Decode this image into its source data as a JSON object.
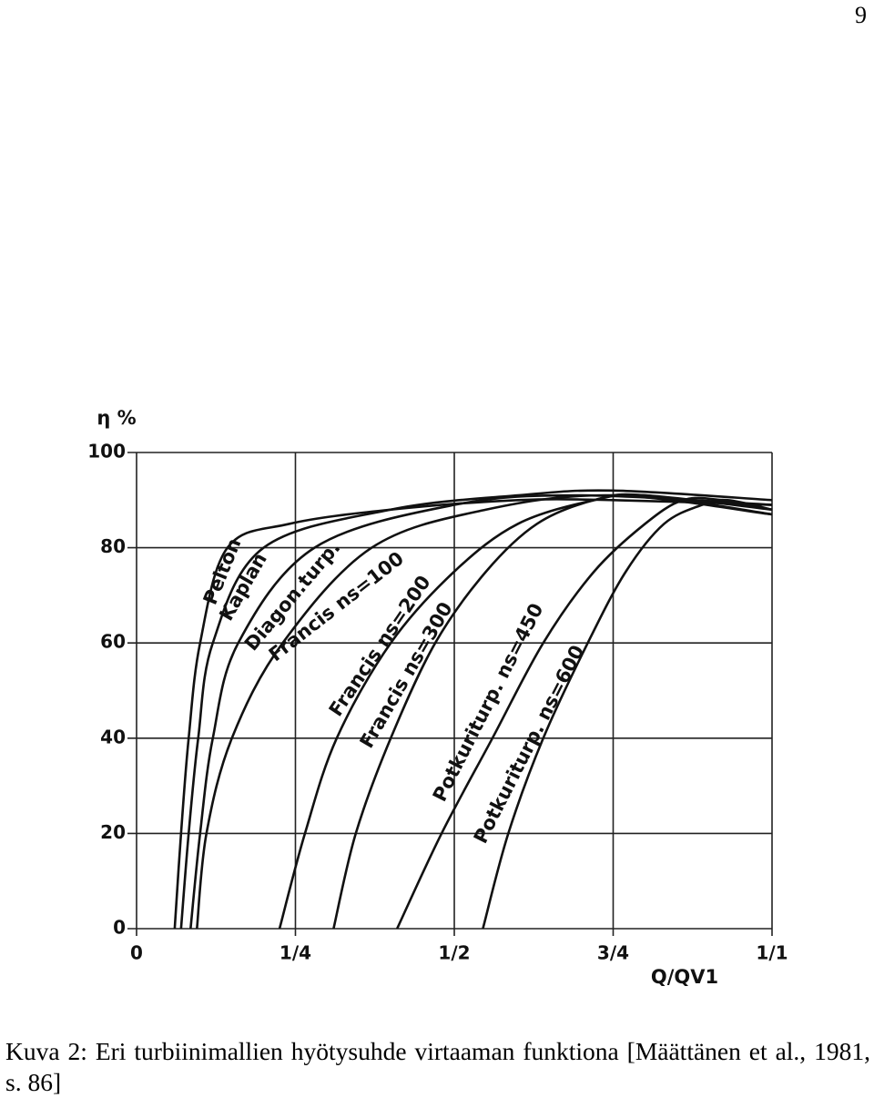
{
  "page_number": "9",
  "caption": "Kuva 2: Eri turbiinimallien hyötysuhde virtaaman funktiona [Määttänen et al., 1981, s. 86]",
  "chart_data": {
    "type": "line",
    "y_label": "η %",
    "x_label": "Q/QV1",
    "xlim": [
      0,
      1
    ],
    "ylim": [
      0,
      100
    ],
    "xticks": [
      0,
      {
        "value": 0.25,
        "label": "1/4"
      },
      {
        "value": 0.5,
        "label": "1/2"
      },
      {
        "value": 0.75,
        "label": "3/4"
      },
      {
        "value": 1,
        "label": "1/1"
      }
    ],
    "yticks": [
      0,
      20,
      40,
      60,
      80,
      100
    ],
    "grid": true,
    "series": [
      {
        "name": "Pelton",
        "color": "#111111",
        "x": [
          0.06,
          0.07,
          0.082,
          0.1,
          0.143,
          0.24,
          0.4,
          0.6,
          0.75,
          1.0
        ],
        "values": [
          0,
          20,
          40,
          60,
          80,
          85,
          88,
          90,
          90,
          89
        ]
      },
      {
        "name": "Kaplan",
        "color": "#111111",
        "x": [
          0.07,
          0.082,
          0.097,
          0.12,
          0.2,
          0.4,
          0.6,
          0.75,
          1.0
        ],
        "values": [
          0,
          20,
          40,
          60,
          80,
          88,
          91,
          92,
          90
        ]
      },
      {
        "name": "Diagon.turp.",
        "color": "#111111",
        "x": [
          0.085,
          0.1,
          0.12,
          0.16,
          0.28,
          0.5,
          0.7,
          1.0
        ],
        "values": [
          0,
          20,
          40,
          60,
          80,
          89,
          91,
          89
        ]
      },
      {
        "name": "Francis ns=100",
        "color": "#111111",
        "x": [
          0.095,
          0.11,
          0.15,
          0.23,
          0.37,
          0.55,
          0.75,
          1.0
        ],
        "values": [
          0,
          20,
          40,
          60,
          80,
          88,
          91,
          87
        ]
      },
      {
        "name": "Francis ns=200",
        "color": "#111111",
        "x": [
          0.225,
          0.265,
          0.315,
          0.4,
          0.5,
          0.6,
          0.72,
          0.8,
          1.0
        ],
        "values": [
          0,
          20,
          40,
          60,
          75,
          85,
          90,
          91,
          88
        ]
      },
      {
        "name": "Francis ns=300",
        "color": "#111111",
        "x": [
          0.31,
          0.345,
          0.4,
          0.47,
          0.55,
          0.63,
          0.72,
          0.8,
          1.0
        ],
        "values": [
          0,
          20,
          40,
          60,
          75,
          85,
          90,
          91,
          87
        ]
      },
      {
        "name": "Potkuriturp. ns=450",
        "color": "#111111",
        "x": [
          0.41,
          0.48,
          0.56,
          0.64,
          0.72,
          0.8,
          0.86,
          0.92,
          1.0
        ],
        "values": [
          0,
          20,
          40,
          60,
          75,
          85,
          90,
          90,
          88
        ]
      },
      {
        "name": "Potkuriturp. ns=600",
        "color": "#111111",
        "x": [
          0.545,
          0.585,
          0.64,
          0.71,
          0.77,
          0.83,
          0.89,
          0.93,
          1.0
        ],
        "values": [
          0,
          20,
          40,
          60,
          75,
          85,
          89,
          90,
          88
        ]
      }
    ]
  }
}
